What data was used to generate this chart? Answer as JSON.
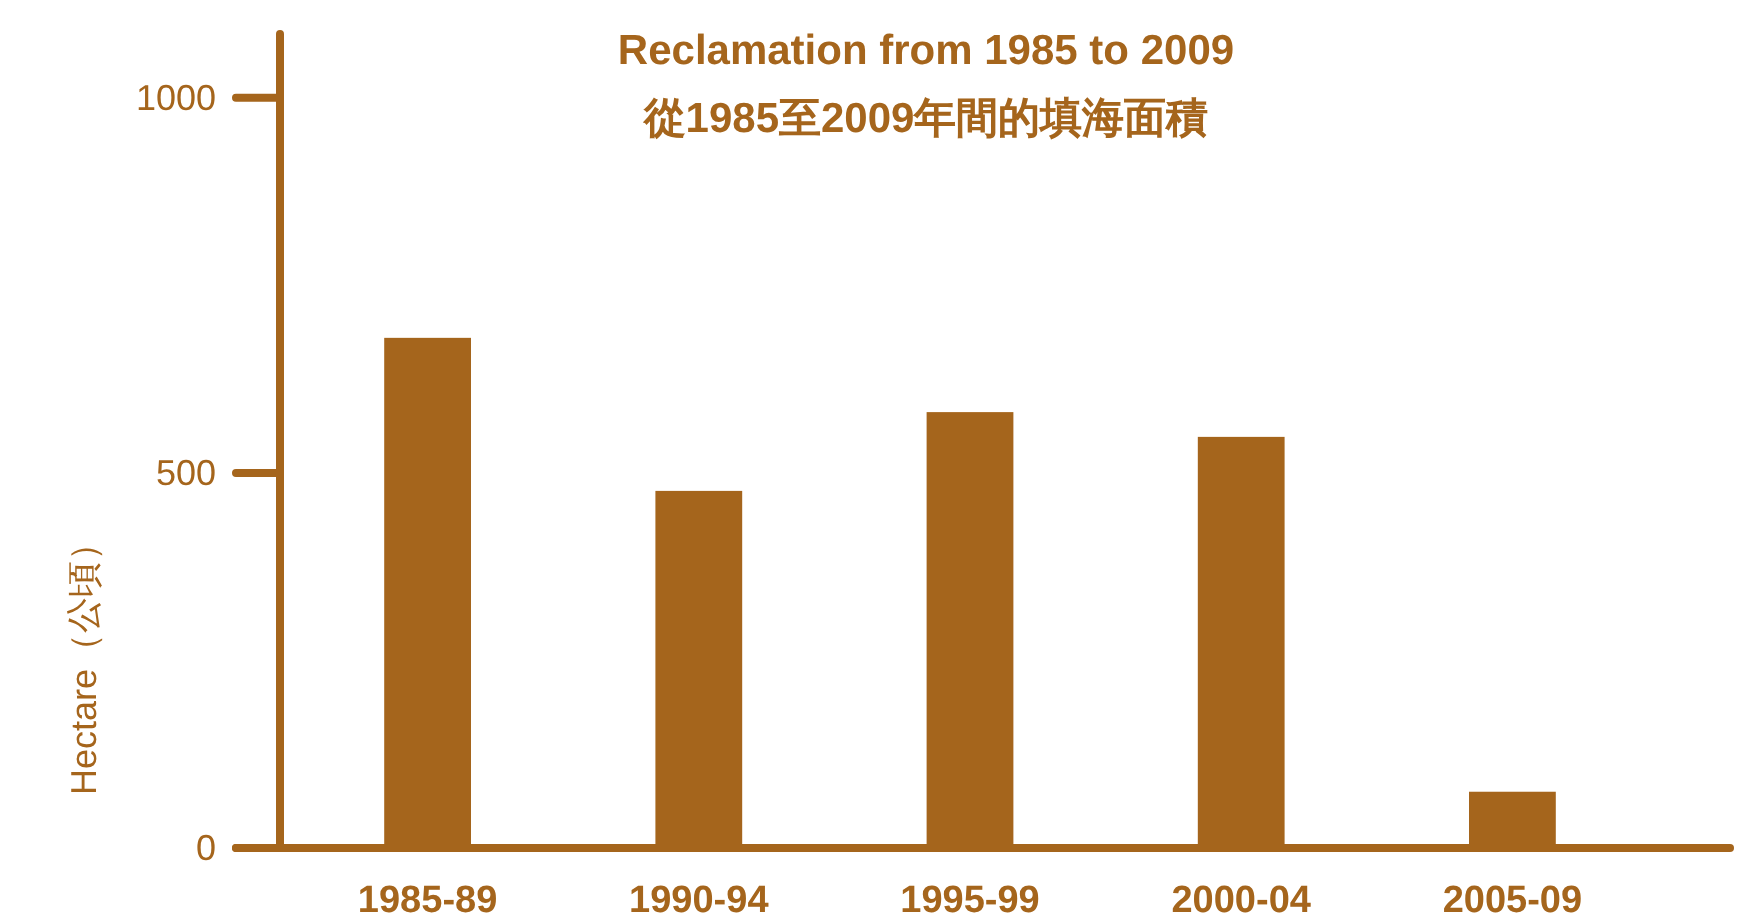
{
  "chart_data": {
    "type": "bar",
    "title": "Reclamation from 1985 to 2009",
    "subtitle": "從1985至2009年間的填海面積",
    "ylabel": "Hectare（公頃）",
    "categories": [
      "1985-89",
      "1990-94",
      "1995-99",
      "2000-04",
      "2005-09"
    ],
    "values": [
      680,
      476,
      581,
      548,
      75
    ],
    "color": "#a5651c",
    "ylim": [
      0,
      1085
    ],
    "yticks": [
      0,
      500,
      1000
    ],
    "grid": false
  }
}
